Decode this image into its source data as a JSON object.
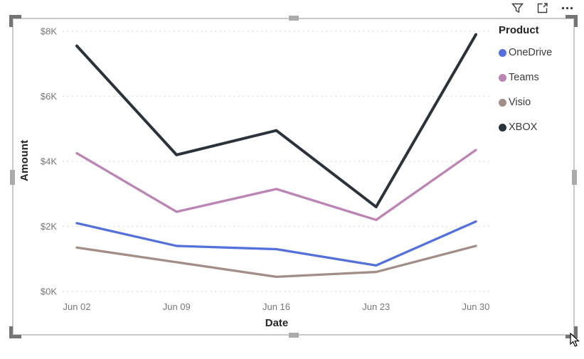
{
  "visual": {
    "type": "line-chart-visual",
    "state": "selected",
    "icons": [
      {
        "name": "filter-funnel-icon",
        "tooltip": "Filters"
      },
      {
        "name": "focus-mode-icon",
        "tooltip": "Focus mode"
      },
      {
        "name": "more-options-icon",
        "tooltip": "More options"
      }
    ]
  },
  "chart_data": {
    "type": "line",
    "x": [
      "Jun 02",
      "Jun 09",
      "Jun 16",
      "Jun 23",
      "Jun 30"
    ],
    "series": [
      {
        "name": "OneDrive",
        "color": "#5470db",
        "values": [
          2100,
          1400,
          1300,
          800,
          2150
        ]
      },
      {
        "name": "Teams",
        "color": "#bc84b5",
        "values": [
          4250,
          2450,
          3150,
          2200,
          4350
        ]
      },
      {
        "name": "Visio",
        "color": "#a28d87",
        "values": [
          1350,
          900,
          450,
          600,
          1400
        ]
      },
      {
        "name": "XBOX",
        "color": "#2a333b",
        "values": [
          7550,
          4200,
          4950,
          2600,
          7900
        ]
      }
    ],
    "title": "",
    "xlabel": "Date",
    "ylabel": "Amount",
    "ylim": [
      0,
      8000
    ],
    "y_ticks": [
      {
        "value": 0,
        "label": "$0K"
      },
      {
        "value": 2000,
        "label": "$2K"
      },
      {
        "value": 4000,
        "label": "$4K"
      },
      {
        "value": 6000,
        "label": "$6K"
      },
      {
        "value": 8000,
        "label": "$8K"
      }
    ],
    "legend_title": "Product",
    "legend_position": "right",
    "grid": "dotted-horizontal",
    "grid_color": "#d2d0ce",
    "tick_label_color": "#777776"
  }
}
